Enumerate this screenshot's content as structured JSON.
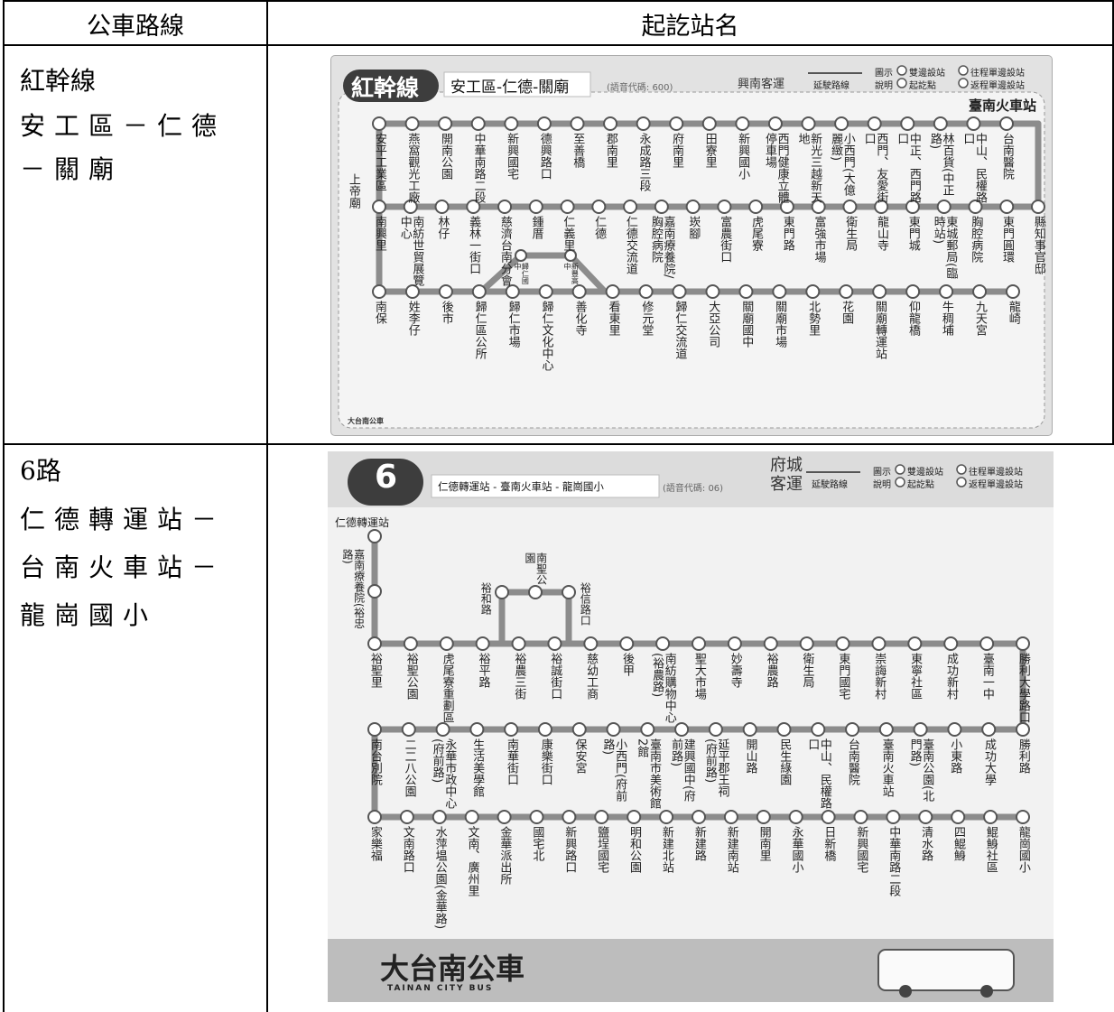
{
  "table": {
    "header": [
      "公車路線",
      "起訖站名"
    ],
    "rows": [
      {
        "route": [
          "紅幹線",
          "安工區－仁德",
          "－關廟"
        ],
        "map": {
          "badge": "紅幹線",
          "title": "安工區-仁德-關廟",
          "voice_code": "(語音代碼: 600)",
          "operator": "興南客運",
          "legend": [
            "延駛路線",
            "圖示",
            "說明",
            "雙邊設站",
            "起訖點",
            "往程單邊設站",
            "返程單邊設站"
          ],
          "notes": [
            "臺南火車站",
            "上帝廟"
          ],
          "rows": [
            [
              "安平工業區",
              "燕窩觀光工廠",
              "開南公園",
              "中華南路二段",
              "新興國宅",
              "德興路口",
              "至善橋",
              "郡南里",
              "永成路三段",
              "府南里",
              "田寮里",
              "新興國小",
              "西門健康立體停車場",
              "新光三越新天地",
              "小西門(大億麗緻)",
              "西門、友愛街口",
              "中正、西門路口",
              "林百貨(中正路)",
              "中山、民權路口",
              "台南醫院"
            ],
            [
              "南興里",
              "南紡世貿展覽中心",
              "林仔",
              "義林一街口",
              "慈濟台南分會",
              "鍾厝",
              "仁義里",
              "仁德",
              "仁德交流道",
              "嘉南療養院/胸腔病院",
              "崁腳",
              "富農街口",
              "虎尾寮",
              "東門路",
              "富強市場",
              "衛生局",
              "龍山寺",
              "東門城",
              "東城郵局(臨時站)",
              "胸腔病院",
              "東門圓環",
              "縣知事官邸"
            ],
            [
              "南保",
              "姓李仔",
              "後市",
              "歸仁區公所",
              "歸仁市場",
              "歸仁文化中心",
              "善化寺",
              "看東里",
              "修元堂",
              "歸仁交流道",
              "大亞公司",
              "關廟國中",
              "關廟市場",
              "北勢里",
              "花園",
              "關廟轉運站",
              "仰龍橋",
              "牛稠埔",
              "九天宮",
              "龍崎"
            ]
          ],
          "branch": [
            "歸仁國中",
            "新豐高中"
          ],
          "footer": [
            "大台南公車"
          ]
        }
      },
      {
        "route": [
          "6路",
          "仁德轉運站－",
          "台南火車站－",
          "龍崗國小"
        ],
        "map": {
          "badge": "6",
          "title": "仁德轉運站 - 臺南火車站 - 龍崗國小",
          "voice_code": "(語音代碼: 06)",
          "operator": "府城客運",
          "legend": [
            "延駛路線",
            "圖示",
            "說明",
            "雙邊設站",
            "起訖點",
            "往程單邊設站",
            "返程單邊設站"
          ],
          "start": [
            "仁德轉運站",
            "嘉南療養院(裕忠路)"
          ],
          "rows": [
            [
              "裕聖里",
              "裕聖公園",
              "虎尾寮重劃區",
              "裕平路",
              "裕農三街",
              "裕誠街口",
              "慈幼工商",
              "後甲",
              "南紡購物中心(裕農路)",
              "聖大市場",
              "妙壽寺",
              "裕農路",
              "衛生局",
              "東門國宅",
              "崇誨新村",
              "東寧社區",
              "成功新村",
              "臺南一中",
              "勝利大學路口"
            ],
            [
              "南台別院",
              "二二八公園",
              "永華市政中心(府前路)",
              "生活美學館",
              "南華街口",
              "康樂街口",
              "保安宮",
              "小西門(府前路)",
              "臺南市美術館2館",
              "建興國中(府前路)",
              "延平郡王祠(府前路)",
              "開山路",
              "民生綠園",
              "中山、民權路口",
              "台南醫院",
              "臺南火車站",
              "臺南公園(北門路)",
              "小東路",
              "成功大學",
              "勝利路"
            ],
            [
              "家樂福",
              "文南路口",
              "水萍塭公園(金華路)",
              "文南、廣州里",
              "金華派出所",
              "國宅北",
              "新興路口",
              "鹽埕國宅",
              "明和公園",
              "新建北站",
              "新建路",
              "新建南站",
              "開南里",
              "永華國小",
              "日新橋",
              "新興國宅",
              "中華南路二段",
              "清水路",
              "四鯤鯓",
              "鯤鯓社區",
              "龍崗國小"
            ]
          ],
          "branch": [
            "裕和路",
            "南聖公園",
            "裕信路口"
          ],
          "footer": [
            "大台南公車",
            "TAINAN CITY BUS"
          ]
        }
      }
    ]
  }
}
